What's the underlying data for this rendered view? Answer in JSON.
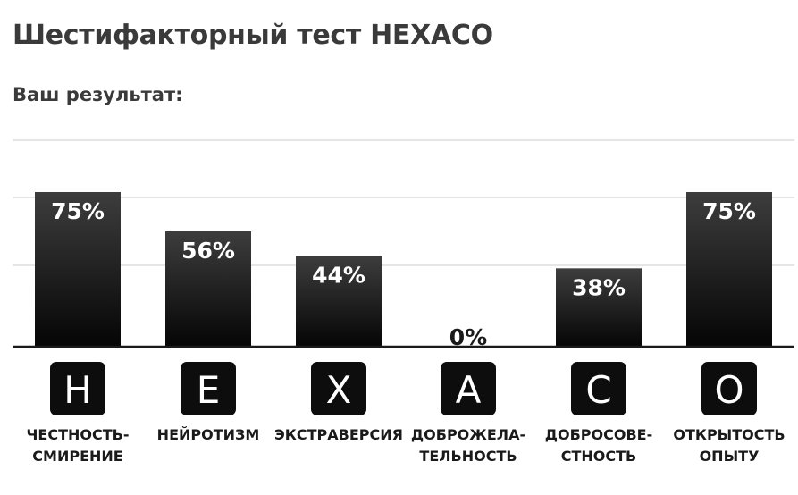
{
  "page": {
    "title": "Шестифакторный тест HEXACO",
    "result_label": "Ваш результат:"
  },
  "colors": {
    "bar_top": "#3d3d3d",
    "bar_bottom": "#050505",
    "tile": "#0d0d0d",
    "gridline": "#dddddd",
    "baseline": "#1a1a1a",
    "text": "#3a3a3a"
  },
  "chart_data": {
    "type": "bar",
    "title": "",
    "xlabel": "",
    "ylabel": "",
    "ylim": [
      0,
      100
    ],
    "grid": true,
    "categories": [
      "H",
      "E",
      "X",
      "A",
      "C",
      "O"
    ],
    "category_labels": [
      [
        "ЧЕСТНОСТЬ-",
        "СМИРЕНИЕ"
      ],
      [
        "НЕЙРОТИЗМ"
      ],
      [
        "ЭКСТРАВЕРСИЯ"
      ],
      [
        "ДОБРОЖЕЛА-",
        "ТЕЛЬНОСТЬ"
      ],
      [
        "ДОБРОСОВЕ-",
        "СТНОСТЬ"
      ],
      [
        "ОТКРЫТОСТЬ",
        "ОПЫТУ"
      ]
    ],
    "values": [
      75,
      56,
      44,
      0,
      38,
      75
    ],
    "value_labels": [
      "75%",
      "56%",
      "44%",
      "0%",
      "38%",
      "75%"
    ]
  }
}
